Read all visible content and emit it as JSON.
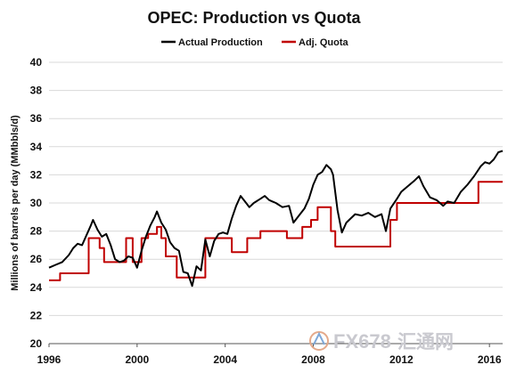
{
  "chart_data": {
    "type": "line",
    "title": "OPEC: Production vs Quota",
    "ylabel": "Millions of barrels per day (MMbbls/d)",
    "xlabel": "",
    "xlim": [
      1996,
      2016.6
    ],
    "ylim": [
      20,
      40
    ],
    "xticks": [
      1996,
      2000,
      2004,
      2008,
      2012,
      2016
    ],
    "yticks": [
      20,
      22,
      24,
      26,
      28,
      30,
      32,
      34,
      36,
      38,
      40
    ],
    "grid": "horizontal",
    "legend_position": "top-center",
    "series": [
      {
        "name": "Actual Production",
        "color": "#000000",
        "style": "line",
        "points": [
          [
            1996.0,
            25.4
          ],
          [
            1996.3,
            25.6
          ],
          [
            1996.6,
            25.8
          ],
          [
            1996.9,
            26.3
          ],
          [
            1997.1,
            26.8
          ],
          [
            1997.3,
            27.1
          ],
          [
            1997.5,
            27.0
          ],
          [
            1997.7,
            27.7
          ],
          [
            1997.9,
            28.4
          ],
          [
            1998.0,
            28.8
          ],
          [
            1998.2,
            28.1
          ],
          [
            1998.4,
            27.6
          ],
          [
            1998.6,
            27.8
          ],
          [
            1998.8,
            27.0
          ],
          [
            1999.0,
            26.0
          ],
          [
            1999.2,
            25.8
          ],
          [
            1999.4,
            25.9
          ],
          [
            1999.6,
            26.2
          ],
          [
            1999.8,
            26.1
          ],
          [
            2000.0,
            25.4
          ],
          [
            2000.2,
            26.6
          ],
          [
            2000.4,
            27.6
          ],
          [
            2000.6,
            28.4
          ],
          [
            2000.8,
            29.0
          ],
          [
            2000.9,
            29.4
          ],
          [
            2001.1,
            28.6
          ],
          [
            2001.3,
            28.1
          ],
          [
            2001.5,
            27.2
          ],
          [
            2001.7,
            26.8
          ],
          [
            2001.9,
            26.6
          ],
          [
            2002.1,
            25.1
          ],
          [
            2002.3,
            25.0
          ],
          [
            2002.5,
            24.1
          ],
          [
            2002.7,
            25.5
          ],
          [
            2002.9,
            25.2
          ],
          [
            2003.1,
            27.4
          ],
          [
            2003.3,
            26.2
          ],
          [
            2003.5,
            27.3
          ],
          [
            2003.7,
            27.8
          ],
          [
            2003.9,
            27.9
          ],
          [
            2004.1,
            27.8
          ],
          [
            2004.3,
            28.9
          ],
          [
            2004.5,
            29.8
          ],
          [
            2004.7,
            30.5
          ],
          [
            2004.9,
            30.1
          ],
          [
            2005.1,
            29.7
          ],
          [
            2005.3,
            30.0
          ],
          [
            2005.6,
            30.3
          ],
          [
            2005.8,
            30.5
          ],
          [
            2006.0,
            30.2
          ],
          [
            2006.3,
            30.0
          ],
          [
            2006.6,
            29.7
          ],
          [
            2006.9,
            29.8
          ],
          [
            2007.1,
            28.6
          ],
          [
            2007.3,
            29.0
          ],
          [
            2007.6,
            29.6
          ],
          [
            2007.8,
            30.3
          ],
          [
            2008.0,
            31.3
          ],
          [
            2008.2,
            32.0
          ],
          [
            2008.4,
            32.2
          ],
          [
            2008.6,
            32.7
          ],
          [
            2008.8,
            32.4
          ],
          [
            2008.9,
            32.0
          ],
          [
            2009.1,
            29.5
          ],
          [
            2009.3,
            27.9
          ],
          [
            2009.5,
            28.6
          ],
          [
            2009.7,
            28.9
          ],
          [
            2009.9,
            29.2
          ],
          [
            2010.2,
            29.1
          ],
          [
            2010.5,
            29.3
          ],
          [
            2010.8,
            29.0
          ],
          [
            2011.1,
            29.2
          ],
          [
            2011.3,
            28.0
          ],
          [
            2011.5,
            29.6
          ],
          [
            2011.8,
            30.3
          ],
          [
            2012.0,
            30.8
          ],
          [
            2012.3,
            31.2
          ],
          [
            2012.6,
            31.6
          ],
          [
            2012.8,
            31.9
          ],
          [
            2013.0,
            31.2
          ],
          [
            2013.3,
            30.4
          ],
          [
            2013.6,
            30.2
          ],
          [
            2013.9,
            29.8
          ],
          [
            2014.1,
            30.1
          ],
          [
            2014.4,
            30.0
          ],
          [
            2014.7,
            30.8
          ],
          [
            2015.0,
            31.3
          ],
          [
            2015.3,
            31.9
          ],
          [
            2015.6,
            32.6
          ],
          [
            2015.8,
            32.9
          ],
          [
            2016.0,
            32.8
          ],
          [
            2016.2,
            33.1
          ],
          [
            2016.4,
            33.6
          ],
          [
            2016.6,
            33.7
          ]
        ]
      },
      {
        "name": "Adj. Quota",
        "color": "#c00000",
        "style": "step",
        "points": [
          [
            1996.0,
            24.5
          ],
          [
            1996.5,
            24.5
          ],
          [
            1996.5,
            25.0
          ],
          [
            1997.8,
            25.0
          ],
          [
            1997.8,
            27.5
          ],
          [
            1998.3,
            27.5
          ],
          [
            1998.3,
            26.8
          ],
          [
            1998.5,
            26.8
          ],
          [
            1998.5,
            25.8
          ],
          [
            1999.5,
            25.8
          ],
          [
            1999.5,
            27.5
          ],
          [
            1999.8,
            27.5
          ],
          [
            1999.8,
            25.8
          ],
          [
            2000.2,
            25.8
          ],
          [
            2000.2,
            27.5
          ],
          [
            2000.5,
            27.5
          ],
          [
            2000.5,
            27.8
          ],
          [
            2000.9,
            27.8
          ],
          [
            2000.9,
            28.3
          ],
          [
            2001.1,
            28.3
          ],
          [
            2001.1,
            27.5
          ],
          [
            2001.3,
            27.5
          ],
          [
            2001.3,
            26.2
          ],
          [
            2001.8,
            26.2
          ],
          [
            2001.8,
            24.7
          ],
          [
            2003.1,
            24.7
          ],
          [
            2003.1,
            27.5
          ],
          [
            2004.3,
            27.5
          ],
          [
            2004.3,
            26.5
          ],
          [
            2005.0,
            26.5
          ],
          [
            2005.0,
            27.5
          ],
          [
            2005.6,
            27.5
          ],
          [
            2005.6,
            28.0
          ],
          [
            2006.8,
            28.0
          ],
          [
            2006.8,
            27.5
          ],
          [
            2007.5,
            27.5
          ],
          [
            2007.5,
            28.3
          ],
          [
            2007.9,
            28.3
          ],
          [
            2007.9,
            28.8
          ],
          [
            2008.2,
            28.8
          ],
          [
            2008.2,
            29.7
          ],
          [
            2008.8,
            29.7
          ],
          [
            2008.8,
            28.0
          ],
          [
            2009.0,
            28.0
          ],
          [
            2009.0,
            26.9
          ],
          [
            2011.5,
            26.9
          ],
          [
            2011.5,
            28.8
          ],
          [
            2011.8,
            28.8
          ],
          [
            2011.8,
            30.0
          ],
          [
            2015.5,
            30.0
          ],
          [
            2015.5,
            31.5
          ],
          [
            2016.6,
            31.5
          ]
        ]
      }
    ]
  },
  "watermark": {
    "text": "FX678",
    "color": "#c9c9cf"
  }
}
